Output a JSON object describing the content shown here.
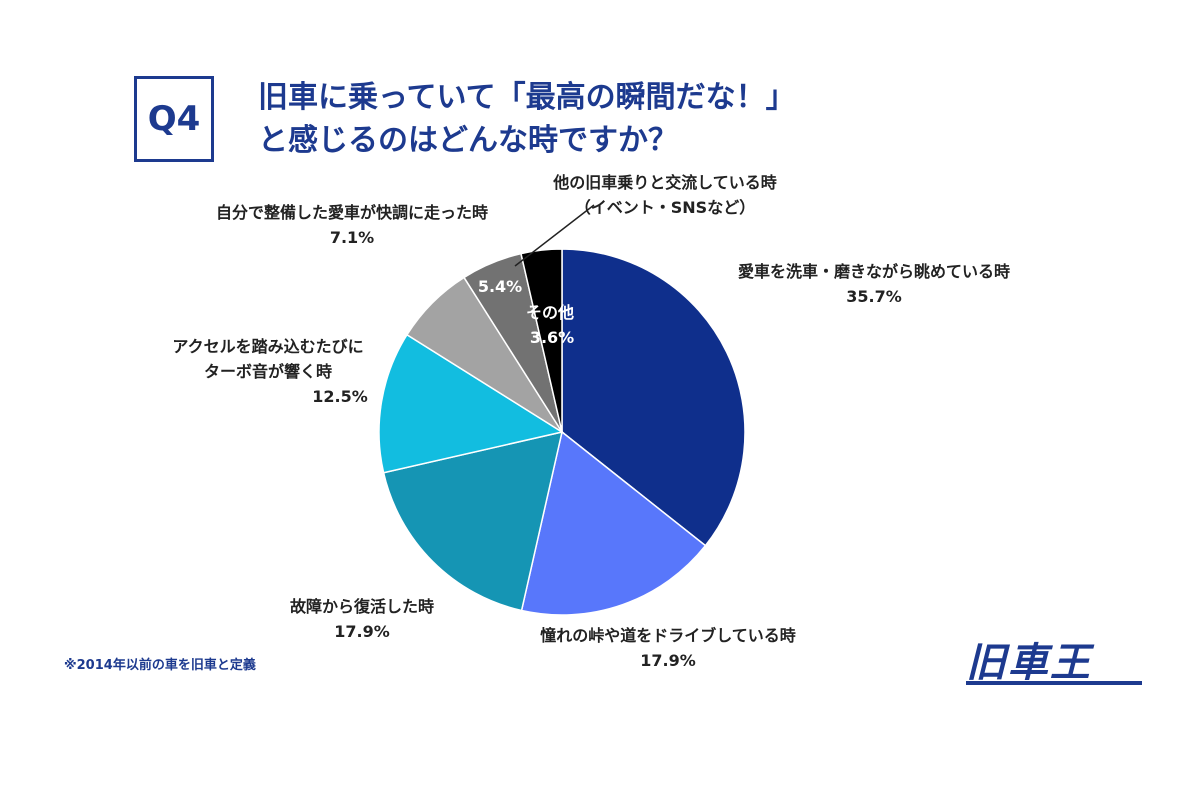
{
  "badge": "Q4",
  "title": {
    "line1": "旧車に乗っていて「最高の瞬間だな！」",
    "line2": "と感じるのはどんな時ですか？"
  },
  "footnote": "※2014年以前の車を旧車と定義",
  "logo": "旧車王",
  "chart_data": {
    "type": "pie",
    "start_angle_deg": 0,
    "direction": "clockwise",
    "slices": [
      {
        "lines": [
          "愛車を洗車・磨きながら眺めている時"
        ],
        "value": 35.7,
        "pct": "35.7%",
        "color": "#0f2f8c"
      },
      {
        "lines": [
          "憧れの峠や道をドライブしている時"
        ],
        "value": 17.9,
        "pct": "17.9%",
        "color": "#5877fb"
      },
      {
        "lines": [
          "故障から復活した時"
        ],
        "value": 17.9,
        "pct": "17.9%",
        "color": "#1595b4"
      },
      {
        "lines": [
          "アクセルを踏み込むたびに",
          "ターボ音が響く時"
        ],
        "value": 12.5,
        "pct": "12.5%",
        "color": "#12bde0"
      },
      {
        "lines": [
          "自分で整備した愛車が快調に走った時"
        ],
        "value": 7.1,
        "pct": "7.1%",
        "color": "#a3a3a3"
      },
      {
        "lines": [
          "他の旧車乗りと交流している時",
          "（イベント・SNSなど）"
        ],
        "value": 5.4,
        "pct": "5.4%",
        "color": "#727272"
      },
      {
        "lines": [
          "その他"
        ],
        "value": 3.6,
        "pct": "3.6%",
        "color": "#000000"
      }
    ]
  }
}
